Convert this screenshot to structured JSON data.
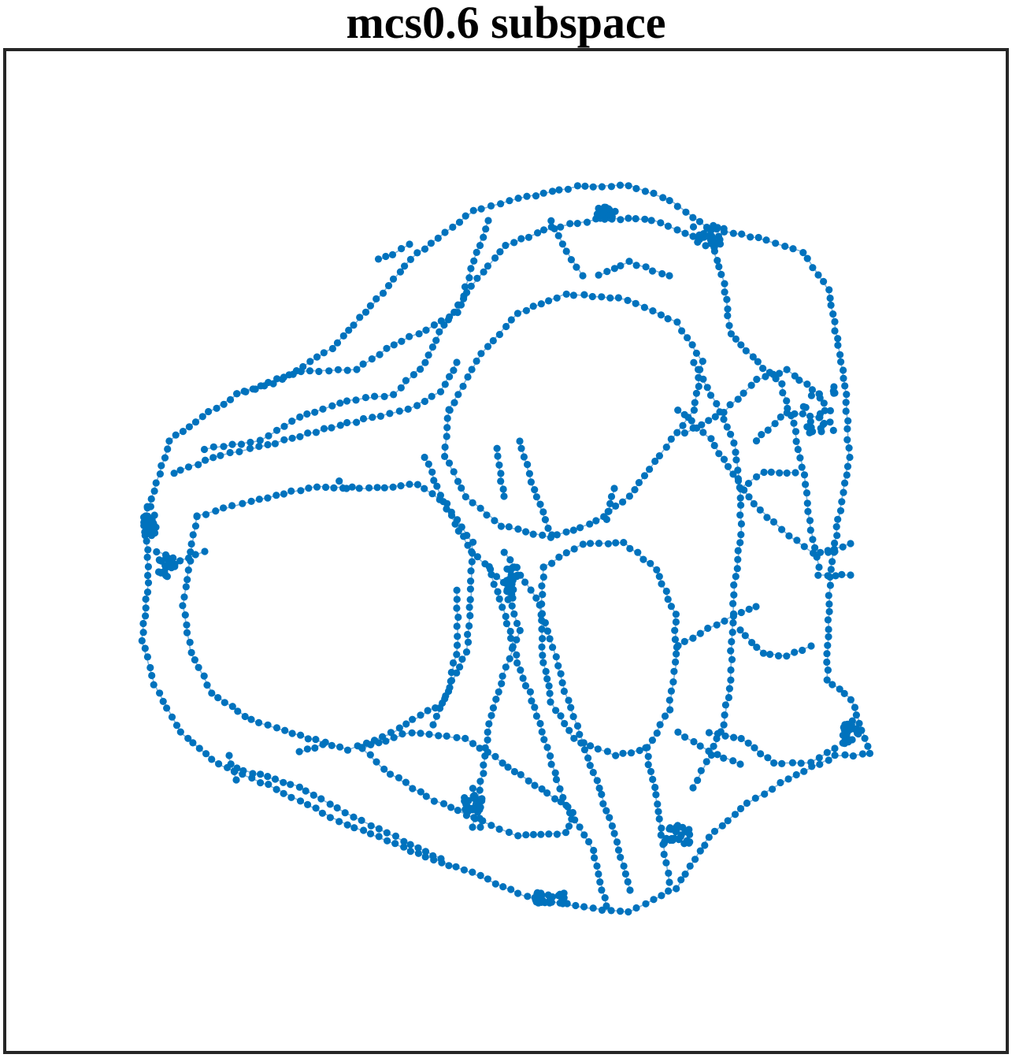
{
  "title": "mcs0.6 subspace",
  "graph": {
    "node_color": "#0072BD",
    "edge_color": "#7FB3DA",
    "frame_color": "#262626",
    "background": "#ffffff"
  }
}
